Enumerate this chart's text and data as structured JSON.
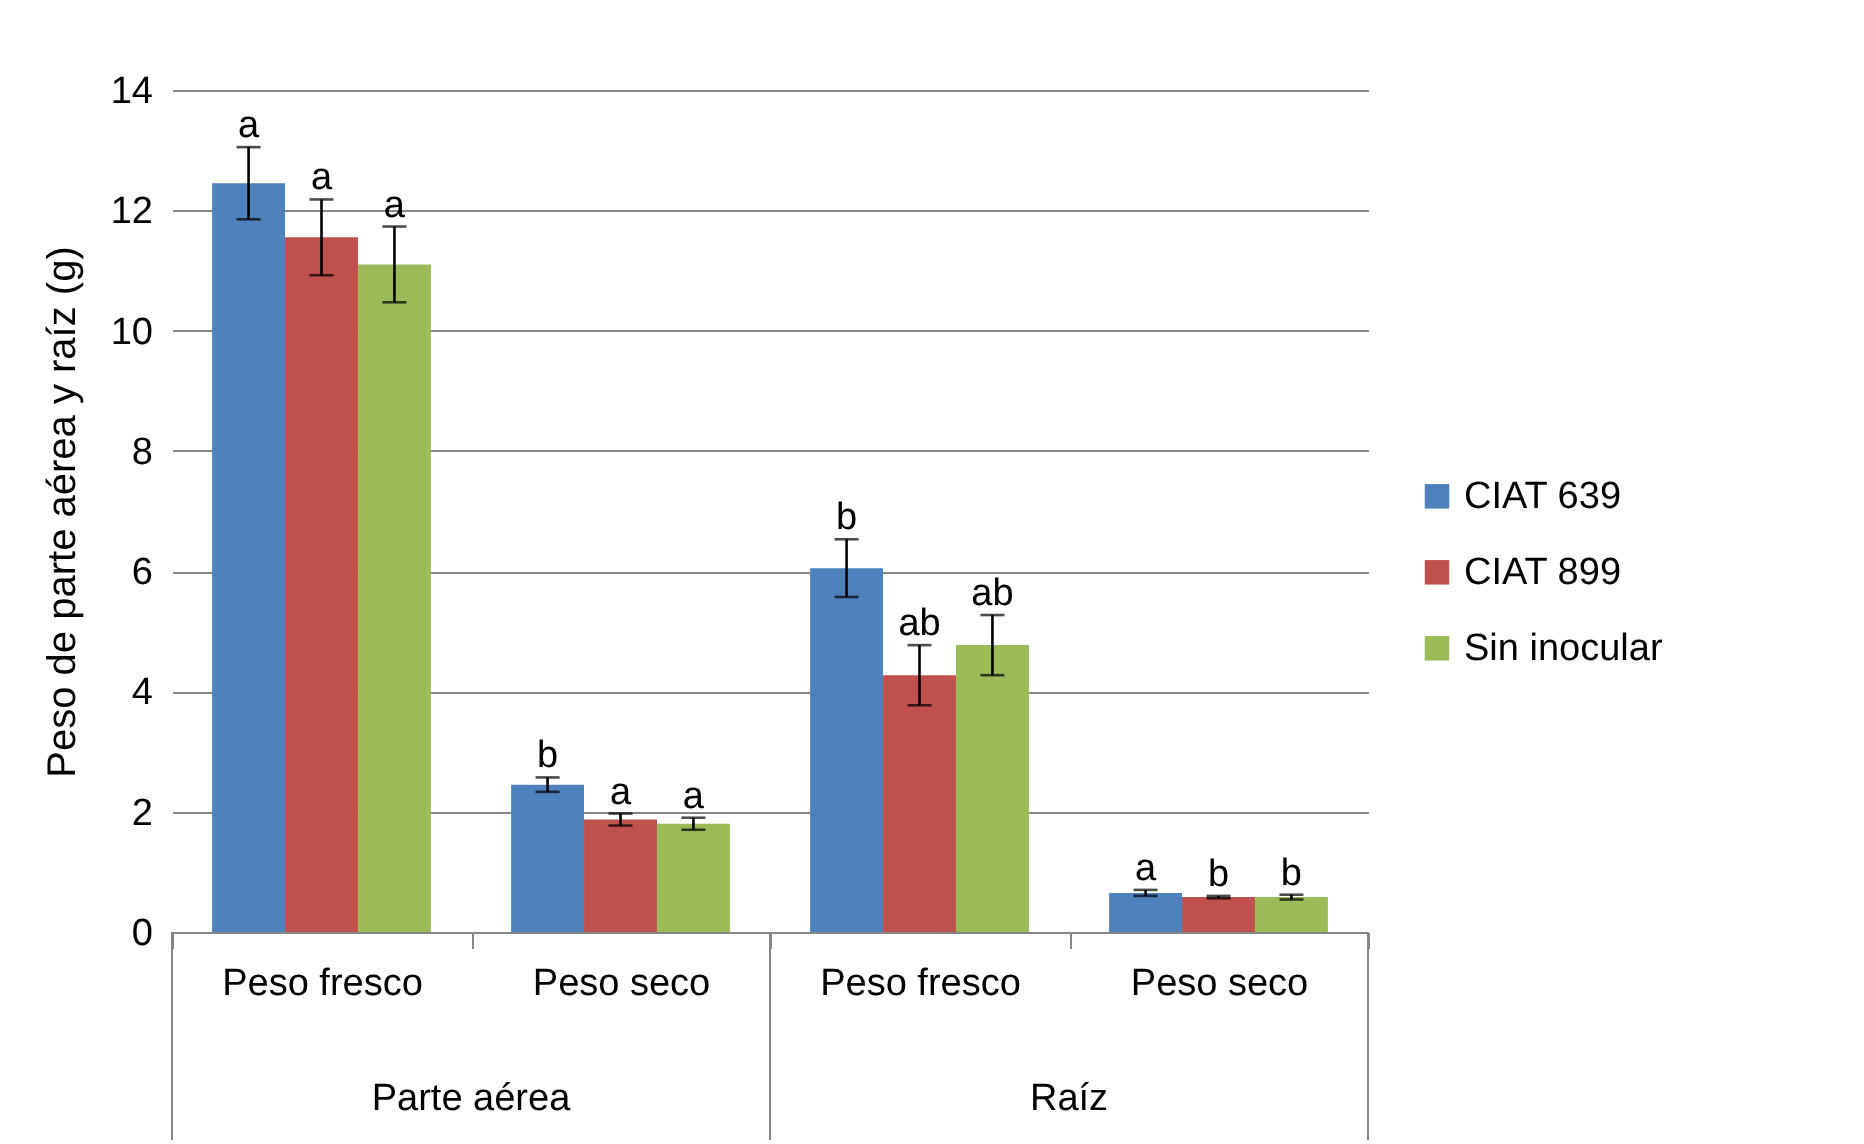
{
  "chart_data": {
    "type": "bar",
    "ylabel": "Peso de parte aérea y raíz (g)",
    "categories": [
      "Peso fresco",
      "Peso seco",
      "Peso fresco",
      "Peso seco"
    ],
    "annotations": [
      "Parte aérea",
      "Raíz"
    ],
    "series": [
      {
        "name": "CIAT 639",
        "color": "#4f81bd",
        "values": [
          12.45,
          2.45,
          6.05,
          0.65
        ],
        "errors": [
          0.6,
          0.12,
          0.48,
          0.05
        ],
        "value_labels": [
          "a",
          "b",
          "b",
          "a"
        ]
      },
      {
        "name": "CIAT 899",
        "color": "#c0504d",
        "values": [
          11.55,
          1.87,
          4.27,
          0.58
        ],
        "errors": [
          0.63,
          0.1,
          0.5,
          0.02
        ],
        "value_labels": [
          "a",
          "a",
          "ab",
          "b"
        ]
      },
      {
        "name": "Sin inocular",
        "color": "#9bbb59",
        "values": [
          11.1,
          1.8,
          4.77,
          0.58
        ],
        "errors": [
          0.63,
          0.1,
          0.5,
          0.04
        ],
        "value_labels": [
          "a",
          "a",
          "ab",
          "b"
        ]
      }
    ],
    "ylim": [
      0,
      14
    ],
    "yticks": [
      0,
      2,
      4,
      6,
      8,
      10,
      12,
      14
    ],
    "grid": "y",
    "legend": "right"
  }
}
